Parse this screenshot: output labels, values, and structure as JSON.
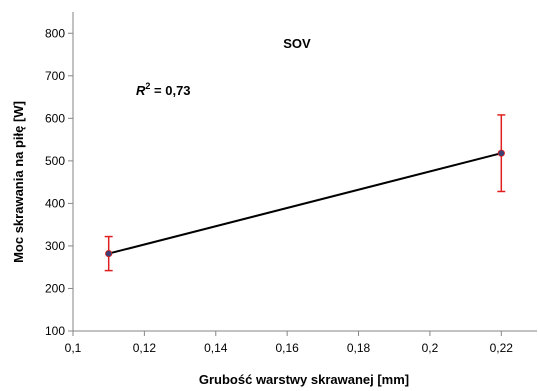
{
  "chart_data": {
    "type": "line",
    "title": "SOV",
    "xlabel": "Grubość warstwy skrawanej [mm]",
    "ylabel": "Moc skrawania na piłę [W]",
    "annotation": {
      "r2_symbol": "R",
      "r2_exponent": "2",
      "r2_value": " = 0,73"
    },
    "xlim": [
      0.1,
      0.23
    ],
    "ylim": [
      100,
      850
    ],
    "x_ticks": [
      0.1,
      0.12,
      0.14,
      0.16,
      0.18,
      0.2,
      0.22
    ],
    "x_tick_labels": [
      "0,1",
      "0,12",
      "0,14",
      "0,16",
      "0,18",
      "0,2",
      "0,22"
    ],
    "y_ticks": [
      100,
      200,
      300,
      400,
      500,
      600,
      700,
      800
    ],
    "y_tick_labels": [
      "100",
      "200",
      "300",
      "400",
      "500",
      "600",
      "700",
      "800"
    ],
    "grid": false,
    "series": [
      {
        "x": [
          0.11,
          0.22
        ],
        "y": [
          282,
          518
        ],
        "error_low": [
          242,
          428
        ],
        "error_high": [
          322,
          608
        ],
        "line_color": "#000000",
        "marker_color": "#3b3f73",
        "error_color": "#e02020"
      }
    ]
  }
}
